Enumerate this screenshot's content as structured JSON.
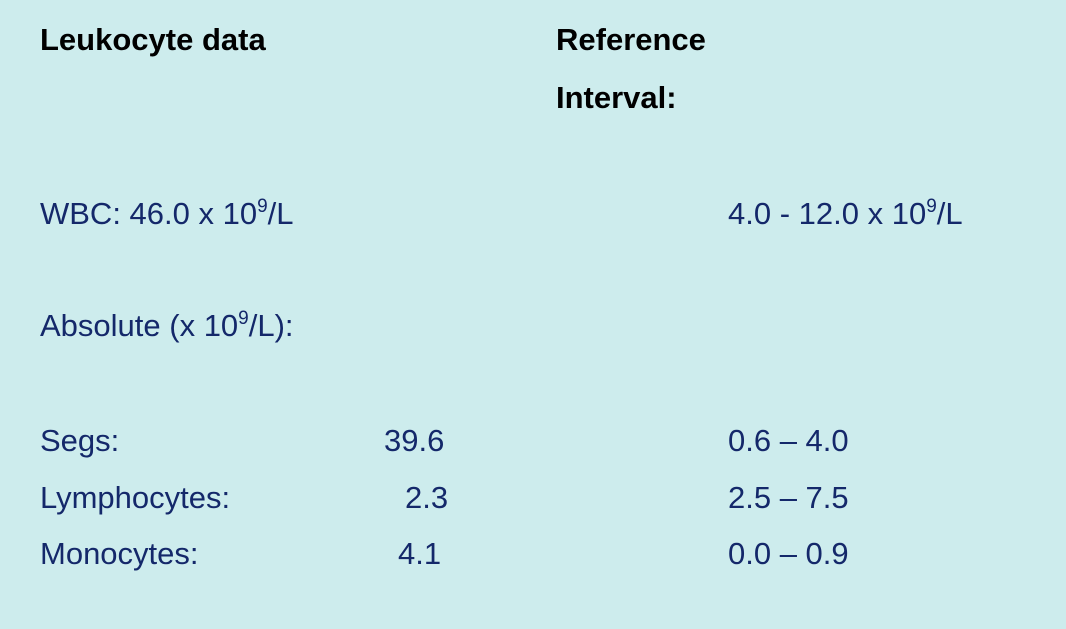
{
  "header": {
    "title": "Leukocyte data",
    "reference_title": [
      "Reference",
      "Interval:"
    ]
  },
  "wbc": {
    "text": "WBC: 46.0 x 10",
    "exponent": "9",
    "unit": "/L",
    "reference": {
      "text": "4.0 - 12.0 x 10",
      "exponent": "9",
      "unit": "/L"
    }
  },
  "absolute": {
    "text": "Absolute (x 10",
    "exponent": "9",
    "unit": "/L):"
  },
  "rows": [
    {
      "label": "Segs:",
      "value": "39.6",
      "reference": "0.6 – 4.0"
    },
    {
      "label": "Lymphocytes:",
      "value": "2.3",
      "reference": "2.5 – 7.5"
    },
    {
      "label": "Monocytes:",
      "value": "4.1",
      "reference": "0.0 – 0.9"
    }
  ]
}
